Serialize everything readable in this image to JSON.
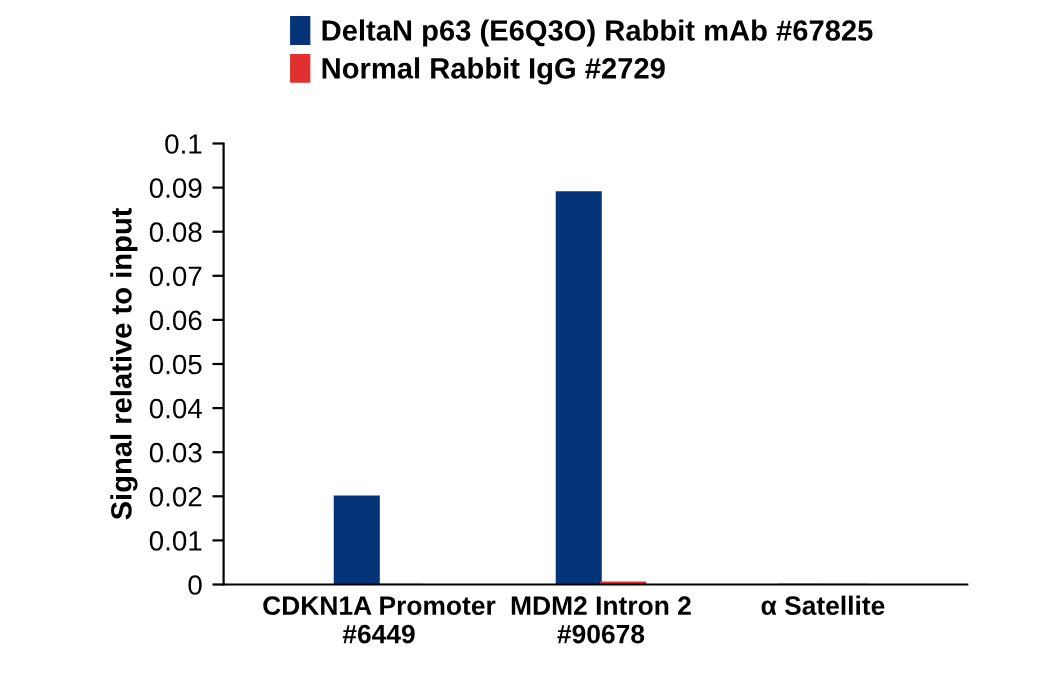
{
  "chart_data": {
    "type": "bar",
    "ylabel": "Signal relative to input",
    "categories": [
      "CDKN1A Promoter\n#6449",
      "MDM2 Intron 2\n#90678",
      "α Satellite"
    ],
    "series": [
      {
        "name": "DeltaN p63 (E6Q3O) Rabbit mAb #67825",
        "color": "#063478",
        "values": [
          0.02,
          0.089,
          0
        ]
      },
      {
        "name": "Normal Rabbit IgG #2729",
        "color": "#e03030",
        "values": [
          null,
          0.0005,
          0
        ]
      }
    ],
    "ylim": [
      0,
      0.1
    ],
    "yticks": [
      0,
      0.01,
      0.02,
      0.03,
      0.04,
      0.05,
      0.06,
      0.07,
      0.08,
      0.09,
      0.1
    ],
    "grid": false,
    "legend": "top"
  }
}
